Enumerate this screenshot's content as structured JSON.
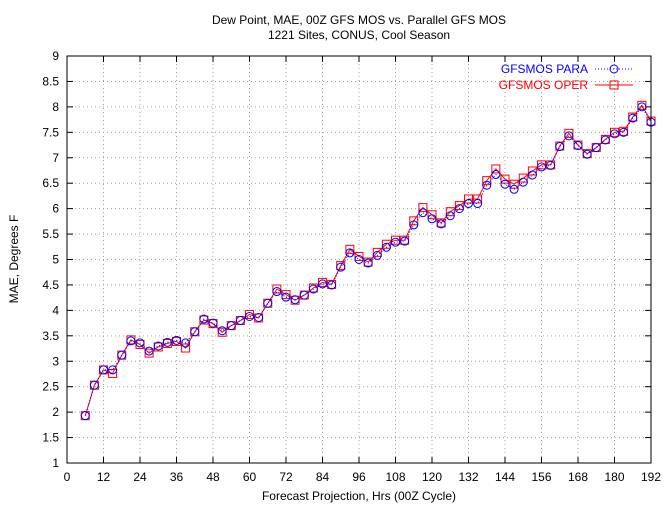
{
  "chart_data": {
    "type": "line",
    "title": "Dew Point, MAE, 00Z GFS MOS vs. Parallel GFS MOS",
    "subtitle": "1221 Sites, CONUS, Cool Season",
    "xlabel": "Forecast Projection, Hrs (00Z Cycle)",
    "ylabel": "MAE, Degrees F",
    "xlim": [
      0,
      192
    ],
    "ylim": [
      1,
      9
    ],
    "xticks": [
      "0",
      "12",
      "24",
      "36",
      "48",
      "60",
      "72",
      "84",
      "96",
      "108",
      "120",
      "132",
      "144",
      "156",
      "168",
      "180",
      "192"
    ],
    "xtick_values": [
      0,
      12,
      24,
      36,
      48,
      60,
      72,
      84,
      96,
      108,
      120,
      132,
      144,
      156,
      168,
      180,
      192
    ],
    "yticks": [
      "1",
      "1.5",
      "2",
      "2.5",
      "3",
      "3.5",
      "4",
      "4.5",
      "5",
      "5.5",
      "6",
      "6.5",
      "7",
      "7.5",
      "8",
      "8.5",
      "9"
    ],
    "ytick_values": [
      1,
      1.5,
      2,
      2.5,
      3,
      3.5,
      4,
      4.5,
      5,
      5.5,
      6,
      6.5,
      7,
      7.5,
      8,
      8.5,
      9
    ],
    "grid": true,
    "legend_position": "top-right",
    "x": [
      6,
      9,
      12,
      15,
      18,
      21,
      24,
      27,
      30,
      33,
      36,
      39,
      42,
      45,
      48,
      51,
      54,
      57,
      60,
      63,
      66,
      69,
      72,
      75,
      78,
      81,
      84,
      87,
      90,
      93,
      96,
      99,
      102,
      105,
      108,
      111,
      114,
      117,
      120,
      123,
      126,
      129,
      132,
      135,
      138,
      141,
      144,
      147,
      150,
      153,
      156,
      159,
      162,
      165,
      168,
      171,
      174,
      177,
      180,
      183,
      186,
      189,
      192
    ],
    "series": [
      {
        "name": "GFSMOS PARA",
        "color": "#0000ff",
        "marker": "circle",
        "line_style": "dotted",
        "values": [
          1.93,
          2.53,
          2.83,
          2.83,
          3.12,
          3.4,
          3.36,
          3.2,
          3.3,
          3.37,
          3.41,
          3.36,
          3.58,
          3.83,
          3.75,
          3.6,
          3.7,
          3.8,
          3.88,
          3.86,
          4.14,
          4.37,
          4.26,
          4.21,
          4.3,
          4.42,
          4.52,
          4.5,
          4.85,
          5.13,
          5.0,
          4.93,
          5.08,
          5.24,
          5.34,
          5.36,
          5.68,
          5.92,
          5.8,
          5.7,
          5.86,
          6.0,
          6.1,
          6.1,
          6.46,
          6.67,
          6.48,
          6.38,
          6.52,
          6.66,
          6.82,
          6.85,
          7.22,
          7.43,
          7.24,
          7.07,
          7.2,
          7.35,
          7.47,
          7.5,
          7.78,
          8.0,
          7.7
        ]
      },
      {
        "name": "GFSMOS OPER",
        "color": "#ff0000",
        "marker": "square",
        "line_style": "solid",
        "values": [
          1.93,
          2.53,
          2.83,
          2.76,
          3.12,
          3.42,
          3.33,
          3.16,
          3.28,
          3.35,
          3.39,
          3.26,
          3.58,
          3.81,
          3.74,
          3.57,
          3.7,
          3.8,
          3.92,
          3.85,
          4.14,
          4.42,
          4.31,
          4.2,
          4.3,
          4.44,
          4.55,
          4.51,
          4.88,
          5.2,
          5.06,
          4.95,
          5.14,
          5.3,
          5.38,
          5.38,
          5.76,
          6.02,
          5.88,
          5.72,
          5.94,
          6.06,
          6.19,
          6.19,
          6.55,
          6.78,
          6.58,
          6.48,
          6.6,
          6.74,
          6.86,
          6.86,
          7.23,
          7.48,
          7.25,
          7.08,
          7.2,
          7.36,
          7.5,
          7.52,
          7.8,
          8.03,
          7.72
        ]
      }
    ]
  }
}
